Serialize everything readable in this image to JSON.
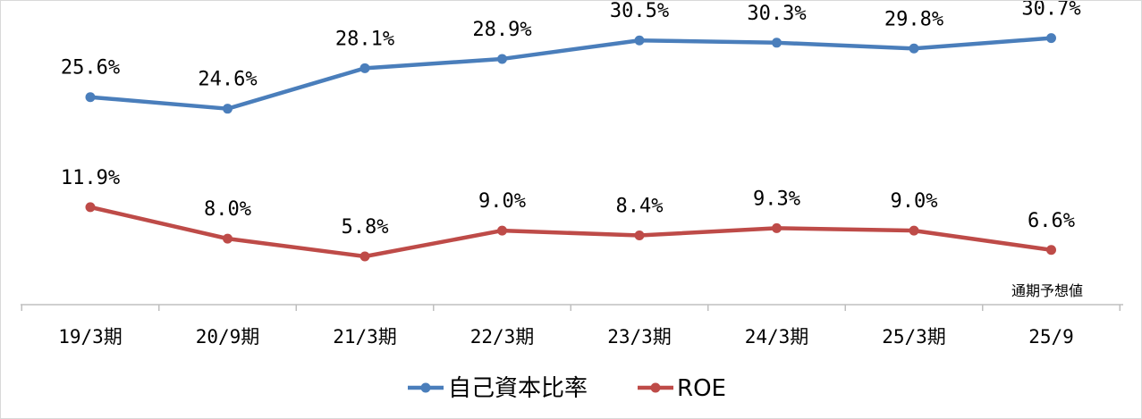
{
  "chart_data": {
    "type": "line",
    "categories": [
      "19/3期",
      "20/9期",
      "21/3期",
      "22/3期",
      "23/3期",
      "24/3期",
      "25/3期",
      "25/9"
    ],
    "series": [
      {
        "name": "自己資本比率",
        "values": [
          25.6,
          24.6,
          28.1,
          28.9,
          30.5,
          30.3,
          29.8,
          30.7
        ],
        "labels": [
          "25.6%",
          "24.6%",
          "28.1%",
          "28.9%",
          "30.5%",
          "30.3%",
          "29.8%",
          "30.7%"
        ],
        "color": "#4a7ebb"
      },
      {
        "name": "ROE",
        "values": [
          11.9,
          8.0,
          5.8,
          9.0,
          8.4,
          9.3,
          9.0,
          6.6
        ],
        "labels": [
          "11.9%",
          "8.0%",
          "5.8%",
          "9.0%",
          "8.4%",
          "9.3%",
          "9.0%",
          "6.6%"
        ],
        "color": "#be4b48"
      }
    ],
    "annotation": "通期予想値",
    "legend_position": "bottom",
    "grid": false
  }
}
